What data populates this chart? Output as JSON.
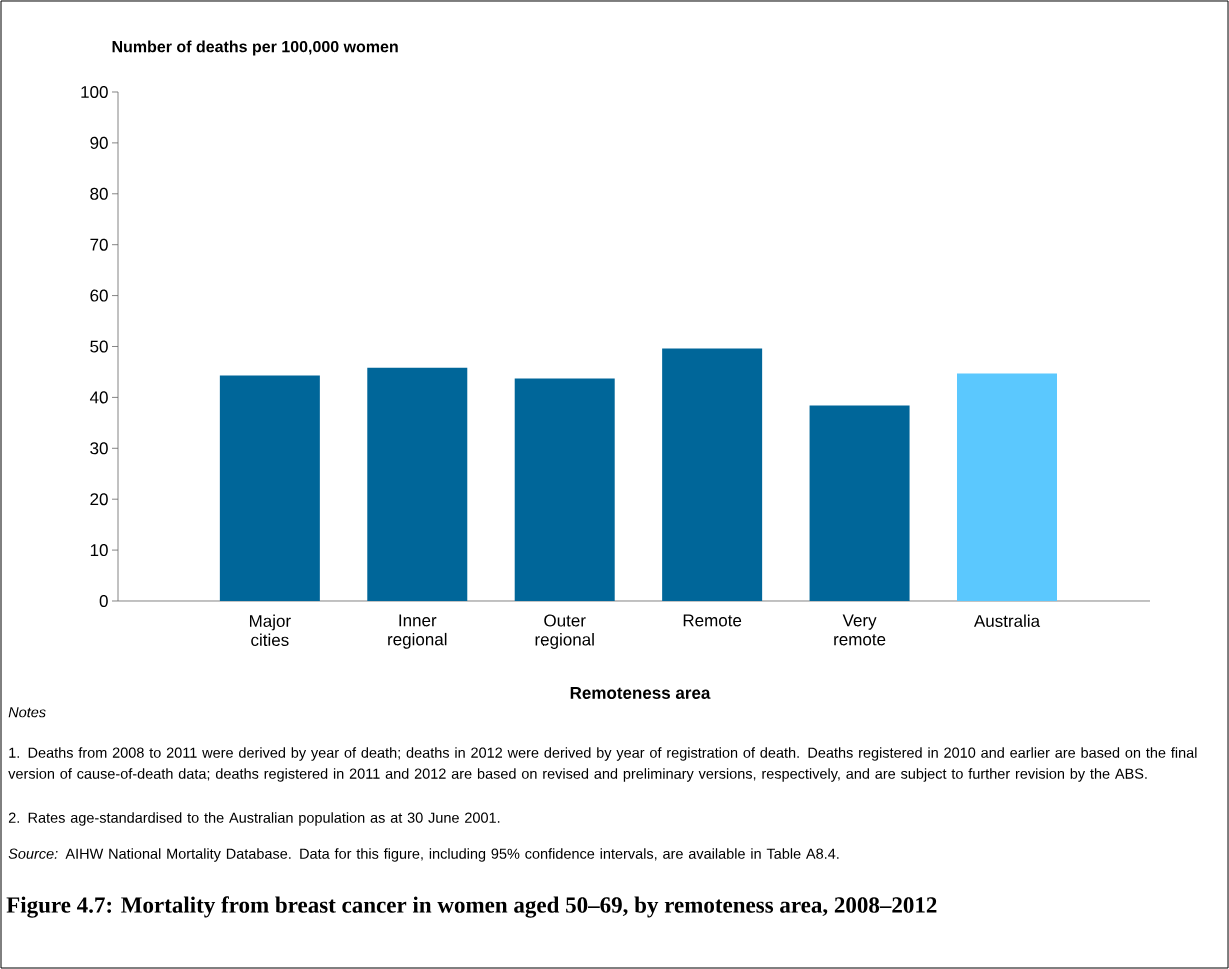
{
  "chart_data": {
    "type": "bar",
    "title": "Figure 4.7: Mortality from breast cancer in women aged 50–69, by remoteness area, 2008–2012",
    "ylabel": "Number of deaths per 100,000 women",
    "xlabel": "Remoteness area",
    "categories": [
      "Major cities",
      "Inner regional",
      "Outer regional",
      "Remote",
      "Very remote",
      "Australia"
    ],
    "values": [
      44.3,
      45.8,
      43.7,
      49.6,
      38.4,
      44.7
    ],
    "colors": [
      "#006699",
      "#006699",
      "#006699",
      "#006699",
      "#006699",
      "#5bc8fe"
    ],
    "ylim": [
      0,
      100
    ],
    "yticks": [
      0,
      10,
      20,
      30,
      40,
      50,
      60,
      70,
      80,
      90,
      100
    ],
    "grid": false,
    "legend": false,
    "annotations": [
      "Notes",
      "1. Deaths from 2008 to 2011 were derived by year of death; deaths in 2012 were derived by year of registration of death. Deaths registered in 2010 and earlier are based on the final version of cause-of-death data; deaths registered in 2011 and 2012 are based on revised and preliminary versions, respectively, and are subject to further revision by the ABS.",
      "2. Rates age-standardised to the Australian population as at 30 June 2001.",
      "*Source:* AIHW National Mortality Database. Data for this figure, including 95% confidence intervals, are available in Table A8.4."
    ]
  }
}
